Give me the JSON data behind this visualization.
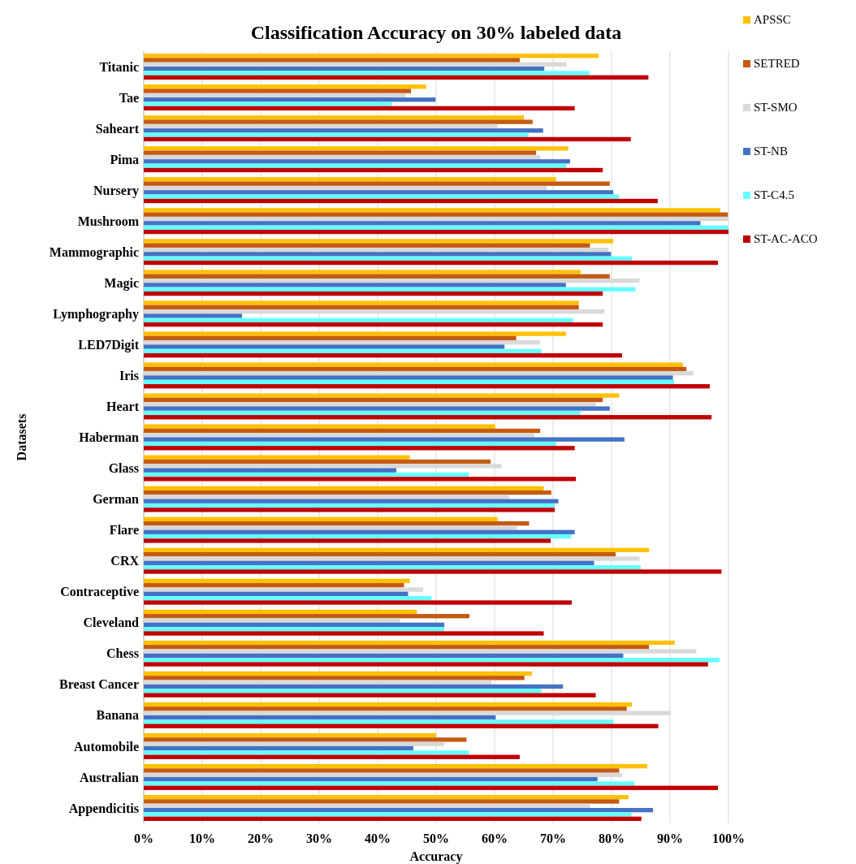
{
  "chart_data": {
    "type": "bar",
    "orientation": "horizontal",
    "title": "Classification Accuracy on 30% labeled data",
    "xlabel": "Accuracy",
    "ylabel": "Datasets",
    "categories": [
      "Titanic",
      "Tae",
      "Saheart",
      "Pima",
      "Nursery",
      "Mushroom",
      "Mammographic",
      "Magic",
      "Lymphography",
      "LED7Digit",
      "Iris",
      "Heart",
      "Haberman",
      "Glass",
      "German",
      "Flare",
      "CRX",
      "Contraceptive",
      "Cleveland",
      "Chess",
      "Breast Cancer",
      "Banana",
      "Automobile",
      "Australian",
      "Appendicitis"
    ],
    "series": [
      {
        "name": "APSSC",
        "color": "#ffc000",
        "values": [
          77.8,
          48.3,
          65.0,
          72.6,
          70.5,
          98.6,
          80.3,
          74.7,
          74.4,
          72.2,
          92.2,
          81.3,
          60.1,
          45.5,
          68.4,
          60.5,
          86.4,
          45.5,
          46.7,
          90.8,
          66.4,
          83.5,
          50.0,
          86.1,
          82.9
        ]
      },
      {
        "name": "SETRED",
        "color": "#c55a11",
        "values": [
          64.3,
          45.7,
          66.5,
          67.1,
          79.7,
          99.9,
          76.3,
          79.7,
          74.4,
          63.7,
          92.8,
          78.5,
          67.8,
          59.3,
          69.7,
          65.9,
          80.7,
          44.5,
          55.7,
          86.4,
          65.1,
          82.6,
          55.2,
          81.3,
          81.3
        ]
      },
      {
        "name": "ST-SMO",
        "color": "#d9d9d9",
        "values": [
          72.3,
          44.8,
          60.5,
          67.8,
          68.9,
          100,
          79.5,
          84.8,
          78.8,
          67.8,
          94.0,
          77.3,
          66.8,
          61.2,
          62.5,
          63.8,
          84.8,
          47.8,
          43.8,
          94.5,
          59.5,
          90.1,
          51.4,
          81.8,
          76.3
        ]
      },
      {
        "name": "ST-NB",
        "color": "#4472c4",
        "values": [
          68.5,
          49.9,
          68.3,
          72.9,
          80.3,
          95.2,
          79.9,
          72.2,
          16.8,
          61.7,
          90.5,
          79.7,
          82.2,
          43.2,
          70.9,
          73.7,
          77.0,
          45.2,
          51.4,
          82.0,
          71.7,
          60.2,
          46.1,
          77.6,
          87.1
        ]
      },
      {
        "name": "ST-C4.5",
        "color": "#66ffff",
        "values": [
          76.2,
          42.4,
          65.8,
          72.3,
          81.3,
          100,
          83.5,
          84.1,
          73.4,
          68.0,
          90.7,
          74.7,
          70.5,
          55.6,
          70.3,
          73.1,
          85.0,
          49.2,
          51.4,
          98.5,
          68.0,
          80.3,
          55.6,
          83.9,
          83.4
        ]
      },
      {
        "name": "ST-AC-ACO",
        "color": "#c00000",
        "values": [
          86.3,
          73.7,
          83.3,
          78.5,
          87.9,
          100,
          98.2,
          78.5,
          78.5,
          81.8,
          96.8,
          97.1,
          73.7,
          73.9,
          70.3,
          69.6,
          98.8,
          73.2,
          68.4,
          96.5,
          77.3,
          88.0,
          64.3,
          98.2,
          85.1
        ]
      }
    ],
    "xlim": [
      0,
      100
    ],
    "xticks": [
      {
        "value": 0,
        "label": "0%"
      },
      {
        "value": 10,
        "label": "10%"
      },
      {
        "value": 20,
        "label": "20%"
      },
      {
        "value": 30,
        "label": "30%"
      },
      {
        "value": 40,
        "label": "40%"
      },
      {
        "value": 50,
        "label": "50%"
      },
      {
        "value": 60,
        "label": "60%"
      },
      {
        "value": 70,
        "label": "70%"
      },
      {
        "value": 80,
        "label": "80%"
      },
      {
        "value": 90,
        "label": "90%"
      },
      {
        "value": 100,
        "label": "100%"
      }
    ],
    "grid": "x",
    "legend": "top right"
  }
}
